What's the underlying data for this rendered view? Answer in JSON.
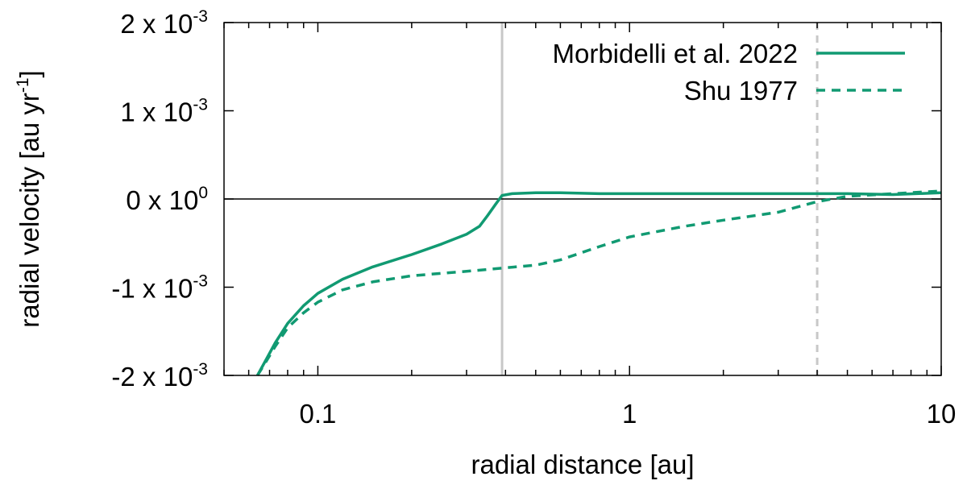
{
  "chart_data": {
    "type": "line",
    "xlabel": "radial distance [au]",
    "ylabel_parts": [
      "radial velocity [au yr",
      "-1",
      "]"
    ],
    "xscale": "log",
    "xlim": [
      0.05,
      10
    ],
    "ylim": [
      -0.002,
      0.002
    ],
    "x_ticks": [
      {
        "value": 0.1,
        "label": "0.1"
      },
      {
        "value": 1,
        "label": "1"
      },
      {
        "value": 10,
        "label": "10"
      }
    ],
    "y_ticks": [
      {
        "value": 0.002,
        "mantissa": "2 x 10",
        "exp": "-3"
      },
      {
        "value": 0.001,
        "mantissa": "1 x 10",
        "exp": "-3"
      },
      {
        "value": 0,
        "mantissa": "0 x 10",
        "exp": "0"
      },
      {
        "value": -0.001,
        "mantissa": "-1 x 10",
        "exp": "-3"
      },
      {
        "value": -0.002,
        "mantissa": "-2 x 10",
        "exp": "-3"
      }
    ],
    "zero_line": true,
    "grid": false,
    "legend_position": "top-right",
    "color": "#119a72",
    "vertical_lines": [
      {
        "x": 0.39,
        "style": "solid",
        "color": "#c8c8c8"
      },
      {
        "x": 4.0,
        "style": "dashed",
        "color": "#c8c8c8"
      }
    ],
    "series": [
      {
        "name": "Morbidelli et al. 2022",
        "style": "solid",
        "x": [
          0.064,
          0.068,
          0.073,
          0.08,
          0.09,
          0.1,
          0.12,
          0.15,
          0.2,
          0.25,
          0.3,
          0.33,
          0.35,
          0.37,
          0.39,
          0.42,
          0.5,
          0.6,
          0.8,
          1.0,
          1.5,
          2.0,
          3.0,
          5.0,
          7.0,
          10.0
        ],
        "y": [
          -0.002,
          -0.00183,
          -0.00163,
          -0.00141,
          -0.00121,
          -0.00107,
          -0.00091,
          -0.00077,
          -0.00063,
          -0.00051,
          -0.0004,
          -0.00031,
          -0.00019,
          -7e-05,
          4e-05,
          6e-05,
          7e-05,
          7e-05,
          6e-05,
          6e-05,
          6e-05,
          6e-05,
          6e-05,
          6e-05,
          5e-05,
          7e-05
        ]
      },
      {
        "name": "Shu 1977",
        "style": "dashed",
        "x": [
          0.064,
          0.068,
          0.073,
          0.08,
          0.09,
          0.1,
          0.12,
          0.15,
          0.2,
          0.3,
          0.4,
          0.5,
          0.6,
          0.8,
          1.0,
          1.5,
          2.0,
          3.0,
          4.0,
          5.0,
          7.0,
          10.0
        ],
        "y": [
          -0.002,
          -0.00185,
          -0.00167,
          -0.00146,
          -0.00129,
          -0.00117,
          -0.00103,
          -0.00094,
          -0.00087,
          -0.00082,
          -0.00078,
          -0.00075,
          -0.00069,
          -0.00054,
          -0.00043,
          -0.00031,
          -0.00024,
          -0.00015,
          -3e-05,
          3e-05,
          6e-05,
          9e-05
        ]
      }
    ]
  }
}
